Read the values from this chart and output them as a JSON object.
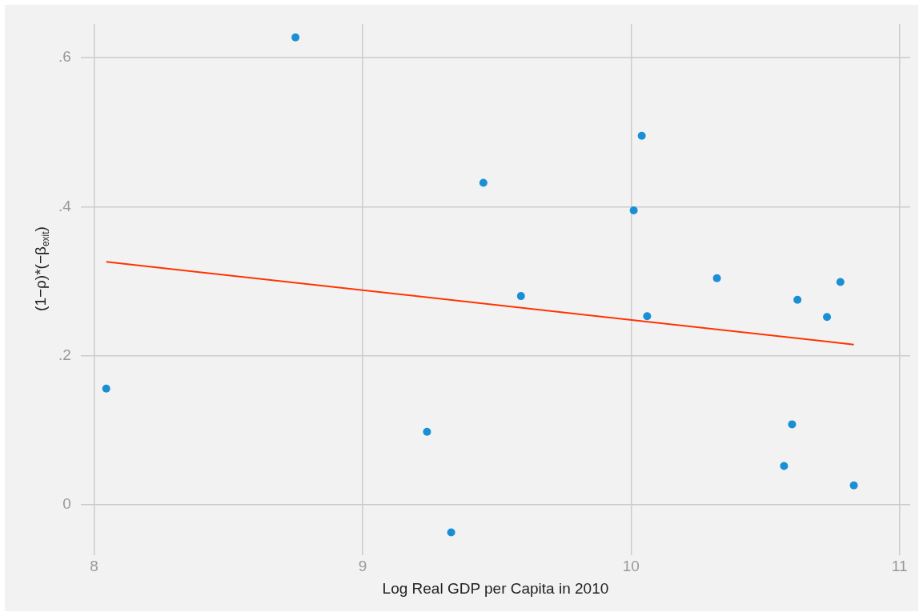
{
  "chart_data": {
    "type": "scatter",
    "xlabel": "Log Real GDP per Capita in 2010",
    "ylabel": "(1−ρ)*(−β$_{exit}$)",
    "xlim": [
      7.95,
      11.04
    ],
    "xticks": [
      8,
      9,
      10,
      11
    ],
    "ylim": [
      -0.068,
      0.645
    ],
    "yticks": [
      {
        "value": 0,
        "label": "0"
      },
      {
        "value": 0.2,
        "label": ".2"
      },
      {
        "value": 0.4,
        "label": ".4"
      },
      {
        "value": 0.6,
        "label": ".6"
      }
    ],
    "grid": true,
    "legend": false,
    "marker": "circle",
    "series": [
      {
        "type": "scatter",
        "color": "#1a8fd6",
        "x": [
          8.045,
          8.75,
          9.24,
          9.33,
          9.45,
          9.59,
          10.04,
          10.01,
          10.06,
          10.32,
          10.62,
          10.6,
          10.57,
          10.73,
          10.78,
          10.83
        ],
        "values": [
          0.156,
          0.627,
          0.098,
          -0.037,
          0.432,
          0.28,
          0.495,
          0.395,
          0.253,
          0.304,
          0.275,
          0.108,
          0.052,
          0.252,
          0.299,
          0.026
        ]
      },
      {
        "type": "line",
        "color": "#ff3300",
        "line_style": "solid",
        "marker": "none",
        "x": [
          8.045,
          10.83
        ],
        "values": [
          0.326,
          0.215
        ]
      }
    ]
  }
}
